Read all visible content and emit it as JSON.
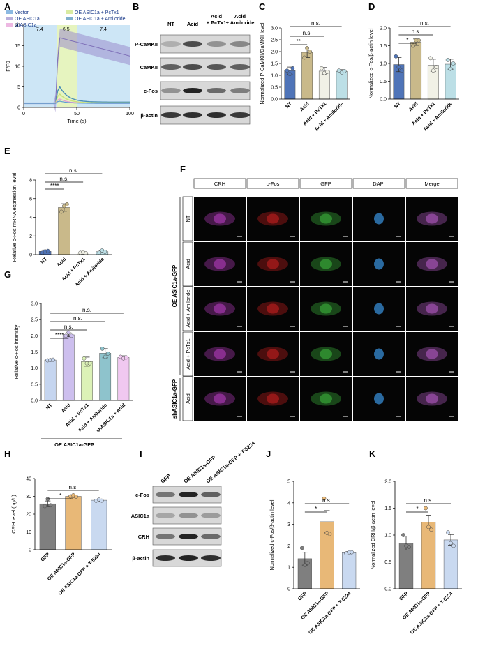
{
  "panel_letters": [
    "A",
    "B",
    "C",
    "D",
    "E",
    "F",
    "G",
    "H",
    "I",
    "J",
    "K"
  ],
  "panelA": {
    "legend": [
      "Vector",
      "OE ASIC1a + PcTx1",
      "OE ASIC1a",
      "OE ASIC1a + Amiloride",
      "shASIC1a"
    ],
    "legend_colors": [
      "#5b9bd5",
      "#c9e27a",
      "#9b8dcc",
      "#4a8fb8",
      "#e59ad6"
    ],
    "ph_labels": [
      "7.4",
      "6.5",
      "7.4"
    ],
    "ylabel": "F/F0",
    "xlabel": "Time (s)",
    "xticks": [
      "0",
      "50",
      "100"
    ],
    "yticks": [
      "0",
      "5",
      "10",
      "15",
      "20"
    ]
  },
  "panelB": {
    "col_headers": [
      "NT",
      "Acid",
      "Acid\n+ PcTx1",
      "Acid\n+ Amiloride"
    ],
    "rows": [
      "P-CaMKII",
      "CaMKII",
      "c-Fos",
      "β-actin"
    ]
  },
  "panelC": {
    "ylabel": "Normalized P-CaMKII/CaMKII level",
    "yticks": [
      "0.0",
      "0.5",
      "1.0",
      "1.5",
      "2.0",
      "2.5",
      "3.0"
    ],
    "categories": [
      "NT",
      "Acid",
      "Acid + PcTx1",
      "Acid + Amiloride"
    ],
    "sig": [
      "**",
      "n.s.",
      "n.s."
    ]
  },
  "panelD": {
    "ylabel": "Normalized c-Fos/β-actin level",
    "yticks": [
      "0.0",
      "0.5",
      "1.0",
      "1.5",
      "2.0"
    ],
    "categories": [
      "NT",
      "Acid",
      "Acid + PcTx1",
      "Acid + Amiloride"
    ],
    "sig": [
      "*",
      "n.s.",
      "n.s."
    ]
  },
  "panelE": {
    "ylabel": "Relative c-Fos mRNA expression level",
    "yticks": [
      "0",
      "2",
      "4",
      "6",
      "8"
    ],
    "categories": [
      "NT",
      "Acid",
      "Acid + PcTx1",
      "Acid + Amiloride"
    ],
    "sig": [
      "****",
      "n.s.",
      "n.s."
    ]
  },
  "panelF": {
    "col_headers": [
      "CRH",
      "c-Fos",
      "GFP",
      "DAPI",
      "Merge"
    ],
    "row_labels": [
      "NT",
      "Acid",
      "Acid + Amiloride",
      "Acid + PcTx1",
      "Acid"
    ],
    "group_labels": [
      "OE ASIC1a-GFP",
      "shASIC1a-GFP"
    ]
  },
  "panelG": {
    "ylabel": "Relative c-Fos intensity",
    "yticks": [
      "0.0",
      "0.5",
      "1.0",
      "1.5",
      "2.0",
      "2.5",
      "3.0"
    ],
    "categories": [
      "NT",
      "Acid",
      "Acid + PcTx1",
      "Acid + Amiloride",
      "shASIC1a + Acid"
    ],
    "group": "OE ASIC1a-GFP",
    "sig": [
      "****",
      "n.s.",
      "n.s.",
      "n.s."
    ]
  },
  "panelH": {
    "ylabel": "CRH level (ng/L)",
    "yticks": [
      "0",
      "10",
      "20",
      "30",
      "40"
    ],
    "categories": [
      "GFP",
      "OE ASIC1a-GFP",
      "OE ASIC1a-GFP + T-5224"
    ],
    "sig": [
      "*",
      "n.s."
    ]
  },
  "panelI": {
    "col_headers": [
      "GFP",
      "OE ASIC1a-GFP",
      "OE ASIC1a-GFP + T-5224"
    ],
    "rows": [
      "c-Fos",
      "ASIC1a",
      "CRH",
      "β-actin"
    ]
  },
  "panelJ": {
    "ylabel": "Normalized c-Fos/β-actin level",
    "yticks": [
      "0",
      "1",
      "2",
      "3",
      "4",
      "5"
    ],
    "categories": [
      "GFP",
      "OE ASIC1a-GFP",
      "OE ASIC1a-GFP + T-5224"
    ],
    "sig": [
      "*",
      "n.s."
    ]
  },
  "panelK": {
    "ylabel": "Normalized CRH/β-actin level",
    "yticks": [
      "0.0",
      "0.5",
      "1.0",
      "1.5",
      "2.0"
    ],
    "categories": [
      "GFP",
      "OE ASIC1a-GFP",
      "OE ASIC1a-GFP + T-5224"
    ],
    "sig": [
      "*",
      "n.s."
    ]
  },
  "chart_data": [
    {
      "panel": "C",
      "type": "bar",
      "categories": [
        "NT",
        "Acid",
        "Acid + PcTx1",
        "Acid + Amiloride"
      ],
      "values": [
        1.2,
        1.97,
        1.18,
        1.17
      ],
      "errors": [
        0.15,
        0.22,
        0.15,
        0.07
      ],
      "ylim": [
        0,
        3
      ],
      "colors": [
        "#4f74b8",
        "#c9b98a",
        "#f1f1e6",
        "#bcdfe6"
      ],
      "points": [
        [
          1.2,
          1.05,
          1.3
        ],
        [
          1.75,
          2.15,
          2.0
        ],
        [
          1.3,
          1.1,
          1.15
        ],
        [
          1.2,
          1.12,
          1.18
        ]
      ]
    },
    {
      "panel": "D",
      "type": "bar",
      "categories": [
        "NT",
        "Acid",
        "Acid + PcTx1",
        "Acid + Amiloride"
      ],
      "values": [
        0.97,
        1.6,
        0.95,
        0.98
      ],
      "errors": [
        0.2,
        0.09,
        0.17,
        0.14
      ],
      "ylim": [
        0,
        2
      ],
      "colors": [
        "#4f74b8",
        "#c9b98a",
        "#f1f1e6",
        "#bcdfe6"
      ],
      "points": [
        [
          1.2,
          0.9,
          0.8
        ],
        [
          1.5,
          1.65,
          1.65
        ],
        [
          1.15,
          0.8,
          0.9
        ],
        [
          1.1,
          0.85,
          1.0
        ]
      ]
    },
    {
      "panel": "E",
      "type": "bar",
      "categories": [
        "NT",
        "Acid",
        "Acid + PcTx1",
        "Acid + Amiloride"
      ],
      "values": [
        0.35,
        5.05,
        0.2,
        0.32
      ],
      "errors": [
        0.15,
        0.4,
        0.05,
        0.12
      ],
      "ylim": [
        0,
        8
      ],
      "colors": [
        "#4f74b8",
        "#c9b98a",
        "#f1f1e6",
        "#bcdfe6"
      ],
      "points": [
        [
          0.2,
          0.35,
          0.4
        ],
        [
          4.6,
          5.2,
          5.4
        ],
        [
          0.2,
          0.25,
          0.15
        ],
        [
          0.2,
          0.45,
          0.3
        ]
      ]
    },
    {
      "panel": "G",
      "type": "bar",
      "categories": [
        "NT",
        "Acid",
        "Acid + PcTx1",
        "Acid + Amiloride",
        "shASIC1a + Acid"
      ],
      "values": [
        1.25,
        2.03,
        1.2,
        1.46,
        1.33
      ],
      "errors": [
        0.02,
        0.06,
        0.14,
        0.14,
        0.05
      ],
      "ylim": [
        0,
        3
      ],
      "colors": [
        "#c5d5ef",
        "#cdbfee",
        "#dcf2b7",
        "#8ec3cc",
        "#f0c8f0"
      ],
      "points": [
        [
          1.24,
          1.25,
          1.26
        ],
        [
          2.0,
          2.1,
          2.0
        ],
        [
          1.3,
          1.15,
          1.15
        ],
        [
          1.6,
          1.35,
          1.45
        ],
        [
          1.35,
          1.3,
          1.33
        ]
      ]
    },
    {
      "panel": "H",
      "type": "bar",
      "categories": [
        "GFP",
        "OE ASIC1a-GFP",
        "OE ASIC1a-GFP + T-5224"
      ],
      "values": [
        25.8,
        30,
        27.8
      ],
      "errors": [
        1.6,
        0.6,
        0.6
      ],
      "ylim": [
        0,
        40
      ],
      "colors": [
        "#7f7f7f",
        "#e8b877",
        "#c9d9f0"
      ],
      "points": [
        [
          24.5,
          28.5,
          25
        ],
        [
          30,
          30.6,
          29.8
        ],
        [
          27.5,
          28.2,
          27.6
        ]
      ]
    },
    {
      "panel": "J",
      "type": "bar",
      "categories": [
        "GFP",
        "OE ASIC1a-GFP",
        "OE ASIC1a-GFP + T-5224"
      ],
      "values": [
        1.4,
        3.12,
        1.68
      ],
      "errors": [
        0.3,
        0.52,
        0.05
      ],
      "ylim": [
        0,
        5
      ],
      "colors": [
        "#7f7f7f",
        "#e8b877",
        "#c9d9f0"
      ],
      "points": [
        [
          1.9,
          1.1,
          1.2
        ],
        [
          4.2,
          2.6,
          2.55
        ],
        [
          1.65,
          1.7,
          1.7
        ]
      ]
    },
    {
      "panel": "K",
      "type": "bar",
      "categories": [
        "GFP",
        "OE ASIC1a-GFP",
        "OE ASIC1a-GFP + T-5224"
      ],
      "values": [
        0.85,
        1.24,
        0.91
      ],
      "errors": [
        0.13,
        0.13,
        0.1
      ],
      "ylim": [
        0,
        2
      ],
      "colors": [
        "#7f7f7f",
        "#e8b877",
        "#c9d9f0"
      ],
      "points": [
        [
          1.0,
          0.8,
          0.78
        ],
        [
          1.5,
          1.15,
          1.1
        ],
        [
          1.05,
          0.85,
          0.8
        ]
      ]
    }
  ]
}
